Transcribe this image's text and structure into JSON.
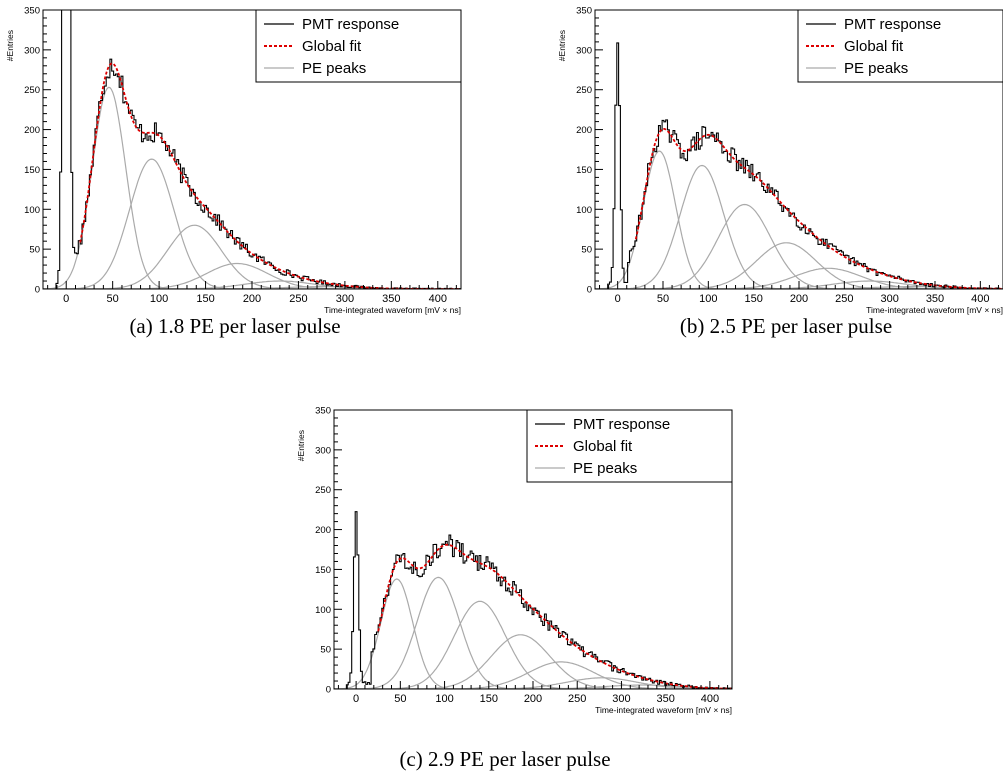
{
  "chart_data": [
    {
      "type": "line",
      "panel": "a",
      "caption": "(a) 1.8 PE per laser pulse",
      "xlabel": "Time-integrated waveform [mV × ns]",
      "ylabel": "#Entries",
      "xlim": [
        -25,
        425
      ],
      "ylim": [
        0,
        350
      ],
      "xticks": [
        0,
        50,
        100,
        150,
        200,
        250,
        300,
        350,
        400
      ],
      "yticks": [
        0,
        50,
        100,
        150,
        200,
        250,
        300,
        350
      ],
      "legend": {
        "position": "top-right",
        "entries": [
          "PMT response",
          "Global fit",
          "PE peaks"
        ]
      },
      "pedestal": {
        "mean": 0,
        "sigma": 2.6,
        "height": 2000
      },
      "fit_start": 15,
      "noise_amplitude": 12,
      "seed": 17,
      "pe_peaks": [
        {
          "mean": 46,
          "sigma": 18,
          "height": 253
        },
        {
          "mean": 92,
          "sigma": 24,
          "height": 163
        },
        {
          "mean": 138,
          "sigma": 29,
          "height": 80
        },
        {
          "mean": 184,
          "sigma": 33,
          "height": 32
        },
        {
          "mean": 230,
          "sigma": 37,
          "height": 10
        },
        {
          "mean": 276,
          "sigma": 40,
          "height": 3
        }
      ]
    },
    {
      "type": "line",
      "panel": "b",
      "caption": "(b) 2.5 PE per laser pulse",
      "xlabel": "Time-integrated waveform [mV × ns]",
      "ylabel": "#Entries",
      "xlim": [
        -25,
        425
      ],
      "ylim": [
        0,
        350
      ],
      "xticks": [
        0,
        50,
        100,
        150,
        200,
        250,
        300,
        350,
        400
      ],
      "yticks": [
        0,
        50,
        100,
        150,
        200,
        250,
        300,
        350
      ],
      "legend": {
        "position": "top-right",
        "entries": [
          "PMT response",
          "Global fit",
          "PE peaks"
        ]
      },
      "pedestal": {
        "mean": 0,
        "sigma": 2.6,
        "height": 300
      },
      "fit_start": 20,
      "noise_amplitude": 12,
      "seed": 29,
      "pe_peaks": [
        {
          "mean": 46,
          "sigma": 18,
          "height": 173
        },
        {
          "mean": 93,
          "sigma": 24,
          "height": 155
        },
        {
          "mean": 140,
          "sigma": 29,
          "height": 106
        },
        {
          "mean": 186,
          "sigma": 33,
          "height": 58
        },
        {
          "mean": 232,
          "sigma": 37,
          "height": 26
        },
        {
          "mean": 278,
          "sigma": 40,
          "height": 10
        },
        {
          "mean": 324,
          "sigma": 43,
          "height": 3
        }
      ]
    },
    {
      "type": "line",
      "panel": "c",
      "caption": "(c) 2.9 PE per laser pulse",
      "xlabel": "Time-integrated waveform [mV × ns]",
      "ylabel": "#Entries",
      "xlim": [
        -25,
        425
      ],
      "ylim": [
        0,
        350
      ],
      "xticks": [
        0,
        50,
        100,
        150,
        200,
        250,
        300,
        350,
        400
      ],
      "yticks": [
        0,
        50,
        100,
        150,
        200,
        250,
        300,
        350
      ],
      "legend": {
        "position": "top-right",
        "entries": [
          "PMT response",
          "Global fit",
          "PE peaks"
        ]
      },
      "pedestal": {
        "mean": 0,
        "sigma": 2.6,
        "height": 215
      },
      "fit_start": 25,
      "noise_amplitude": 12,
      "seed": 43,
      "pe_peaks": [
        {
          "mean": 46,
          "sigma": 18,
          "height": 138
        },
        {
          "mean": 93,
          "sigma": 24,
          "height": 140
        },
        {
          "mean": 140,
          "sigma": 29,
          "height": 110
        },
        {
          "mean": 186,
          "sigma": 33,
          "height": 68
        },
        {
          "mean": 232,
          "sigma": 37,
          "height": 34
        },
        {
          "mean": 278,
          "sigma": 40,
          "height": 14
        },
        {
          "mean": 324,
          "sigma": 43,
          "height": 5
        }
      ]
    }
  ],
  "colors": {
    "histogram": "#000000",
    "global_fit": "#dd0000",
    "pe_peaks": "#aaaaaa",
    "axes": "#000000"
  }
}
